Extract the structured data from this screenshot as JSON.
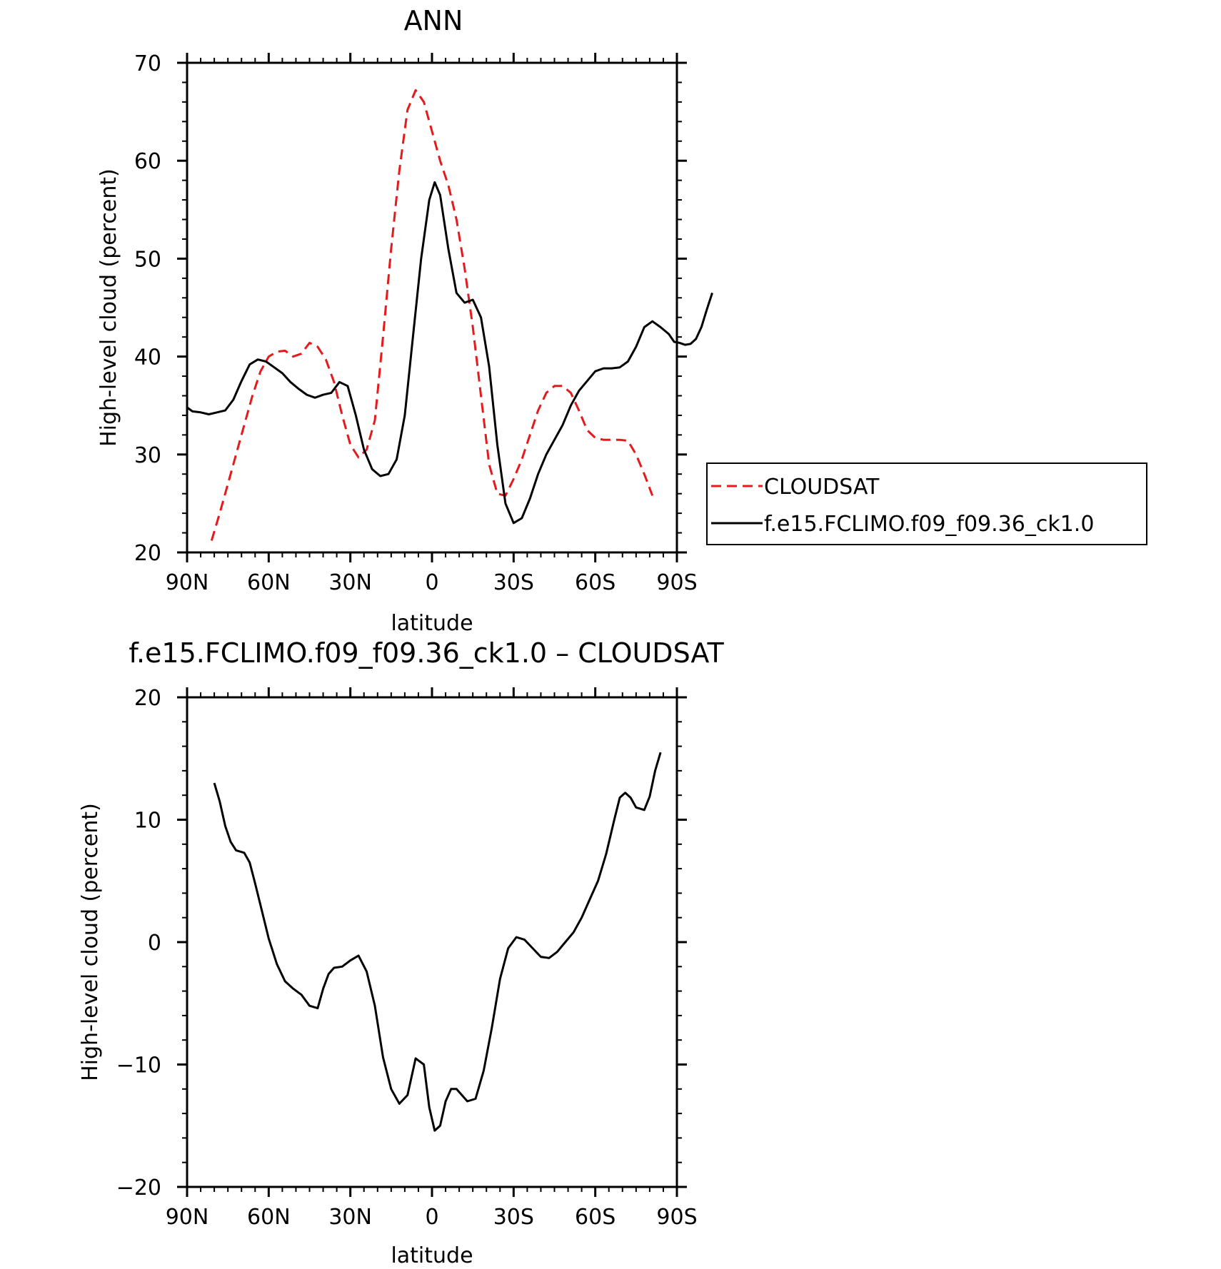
{
  "chart_data": [
    {
      "type": "line",
      "title": "ANN",
      "xlabel": "latitude",
      "ylabel": "High-level cloud (percent)",
      "xlim": [
        -90,
        90
      ],
      "ylim": [
        20,
        70
      ],
      "x_ticks": [
        -90,
        -60,
        -30,
        0,
        30,
        60,
        90
      ],
      "x_tick_labels": [
        "90N",
        "60N",
        "30N",
        "0",
        "30S",
        "60S",
        "90S"
      ],
      "y_ticks": [
        20,
        30,
        40,
        50,
        60,
        70
      ],
      "y_tick_labels": [
        "20",
        "30",
        "40",
        "50",
        "60",
        "70"
      ],
      "legend_position": "right",
      "series": [
        {
          "name": "CLOUDSAT",
          "color": "#e41a1c",
          "style": "dashed",
          "points": [
            [
              -81,
              21.2
            ],
            [
              -78,
              24
            ],
            [
              -75,
              27
            ],
            [
              -72,
              30
            ],
            [
              -69,
              33
            ],
            [
              -66,
              36
            ],
            [
              -63,
              38.5
            ],
            [
              -60,
              40
            ],
            [
              -57,
              40.5
            ],
            [
              -54,
              40.6
            ],
            [
              -51,
              40
            ],
            [
              -48,
              40.3
            ],
            [
              -45,
              41.4
            ],
            [
              -42,
              41
            ],
            [
              -39,
              39.7
            ],
            [
              -36,
              37.4
            ],
            [
              -33,
              34
            ],
            [
              -30,
              31
            ],
            [
              -27,
              29.7
            ],
            [
              -24,
              30.5
            ],
            [
              -21,
              33.5
            ],
            [
              -18,
              42
            ],
            [
              -15,
              51
            ],
            [
              -12,
              59
            ],
            [
              -9,
              65.2
            ],
            [
              -6,
              67.2
            ],
            [
              -3,
              66
            ],
            [
              0,
              63
            ],
            [
              3,
              60
            ],
            [
              6,
              57.5
            ],
            [
              9,
              54
            ],
            [
              12,
              49
            ],
            [
              15,
              43
            ],
            [
              18,
              36
            ],
            [
              21,
              29
            ],
            [
              24,
              26
            ],
            [
              27,
              25.8
            ],
            [
              30,
              27.5
            ],
            [
              33,
              29.5
            ],
            [
              36,
              32
            ],
            [
              39,
              34.5
            ],
            [
              42,
              36.3
            ],
            [
              45,
              37
            ],
            [
              48,
              37
            ],
            [
              51,
              36.3
            ],
            [
              54,
              34.5
            ],
            [
              57,
              32.5
            ],
            [
              60,
              31.7
            ],
            [
              63,
              31.5
            ],
            [
              66,
              31.5
            ],
            [
              69,
              31.5
            ],
            [
              72,
              31.4
            ],
            [
              75,
              30
            ],
            [
              78,
              28
            ],
            [
              81,
              25.8
            ]
          ]
        },
        {
          "name": "f.e15.FCLIMO.f09_f09.36_ck1.0",
          "color": "#000000",
          "style": "solid",
          "points": [
            [
              -90,
              34.8
            ],
            [
              -88,
              34.4
            ],
            [
              -85,
              34.3
            ],
            [
              -82,
              34.1
            ],
            [
              -79,
              34.3
            ],
            [
              -76,
              34.5
            ],
            [
              -73,
              35.6
            ],
            [
              -70,
              37.5
            ],
            [
              -67,
              39.2
            ],
            [
              -64,
              39.7
            ],
            [
              -61,
              39.5
            ],
            [
              -58,
              38.9
            ],
            [
              -55,
              38.3
            ],
            [
              -52,
              37.4
            ],
            [
              -49,
              36.7
            ],
            [
              -46,
              36.1
            ],
            [
              -43,
              35.8
            ],
            [
              -40,
              36.1
            ],
            [
              -37,
              36.3
            ],
            [
              -34,
              37.4
            ],
            [
              -31,
              37
            ],
            [
              -28,
              34
            ],
            [
              -25,
              30.5
            ],
            [
              -22,
              28.5
            ],
            [
              -19,
              27.8
            ],
            [
              -16,
              28
            ],
            [
              -13,
              29.5
            ],
            [
              -10,
              34
            ],
            [
              -7,
              42
            ],
            [
              -4,
              50
            ],
            [
              -1,
              56
            ],
            [
              1,
              57.8
            ],
            [
              3,
              56.5
            ],
            [
              6,
              51
            ],
            [
              9,
              46.5
            ],
            [
              12,
              45.5
            ],
            [
              15,
              45.8
            ],
            [
              18,
              44
            ],
            [
              21,
              39
            ],
            [
              24,
              31
            ],
            [
              27,
              25
            ],
            [
              30,
              23
            ],
            [
              33,
              23.5
            ],
            [
              36,
              25.5
            ],
            [
              39,
              28
            ],
            [
              42,
              30
            ],
            [
              45,
              31.5
            ],
            [
              48,
              33
            ],
            [
              51,
              35
            ],
            [
              54,
              36.5
            ],
            [
              57,
              37.5
            ],
            [
              60,
              38.5
            ],
            [
              63,
              38.8
            ],
            [
              66,
              38.8
            ],
            [
              69,
              38.9
            ],
            [
              72,
              39.5
            ],
            [
              75,
              41
            ],
            [
              78,
              43
            ],
            [
              81,
              43.6
            ],
            [
              84,
              43
            ],
            [
              87,
              42.3
            ],
            [
              89,
              41.5
            ],
            [
              91,
              41.4
            ],
            [
              93,
              41.2
            ],
            [
              95,
              41.3
            ],
            [
              97,
              41.8
            ],
            [
              99,
              43
            ],
            [
              101,
              44.8
            ],
            [
              103,
              46.5
            ]
          ]
        }
      ]
    },
    {
      "type": "line",
      "title": "f.e15.FCLIMO.f09_f09.36_ck1.0 – CLOUDSAT",
      "xlabel": "latitude",
      "ylabel": "High-level cloud (percent)",
      "xlim": [
        -90,
        90
      ],
      "ylim": [
        -20,
        20
      ],
      "x_ticks": [
        -90,
        -60,
        -30,
        0,
        30,
        60,
        90
      ],
      "x_tick_labels": [
        "90N",
        "60N",
        "30N",
        "0",
        "30S",
        "60S",
        "90S"
      ],
      "y_ticks": [
        -20,
        -10,
        0,
        10,
        20
      ],
      "y_tick_labels": [
        "−20",
        "−10",
        "0",
        "10",
        "20"
      ],
      "series": [
        {
          "color": "#000000",
          "style": "solid",
          "points": [
            [
              -80,
              13
            ],
            [
              -78,
              11.5
            ],
            [
              -76,
              9.5
            ],
            [
              -74,
              8.2
            ],
            [
              -72,
              7.5
            ],
            [
              -69,
              7.3
            ],
            [
              -67,
              6.5
            ],
            [
              -65,
              4.8
            ],
            [
              -63,
              3
            ],
            [
              -60,
              0.3
            ],
            [
              -57,
              -1.8
            ],
            [
              -54,
              -3.2
            ],
            [
              -51,
              -3.8
            ],
            [
              -48,
              -4.3
            ],
            [
              -45,
              -5.2
            ],
            [
              -42,
              -5.4
            ],
            [
              -40,
              -3.8
            ],
            [
              -38,
              -2.6
            ],
            [
              -36,
              -2.1
            ],
            [
              -33,
              -2
            ],
            [
              -30,
              -1.5
            ],
            [
              -27,
              -1.1
            ],
            [
              -24,
              -2.4
            ],
            [
              -21,
              -5.2
            ],
            [
              -18,
              -9.4
            ],
            [
              -15,
              -12
            ],
            [
              -12,
              -13.2
            ],
            [
              -9,
              -12.5
            ],
            [
              -6,
              -9.5
            ],
            [
              -3,
              -10
            ],
            [
              -1,
              -13.5
            ],
            [
              1,
              -15.4
            ],
            [
              3,
              -15
            ],
            [
              5,
              -13
            ],
            [
              7,
              -12
            ],
            [
              9,
              -12
            ],
            [
              11,
              -12.5
            ],
            [
              13,
              -13
            ],
            [
              16,
              -12.8
            ],
            [
              19,
              -10.5
            ],
            [
              22,
              -7
            ],
            [
              25,
              -3
            ],
            [
              28,
              -0.5
            ],
            [
              31,
              0.4
            ],
            [
              34,
              0.2
            ],
            [
              37,
              -0.5
            ],
            [
              40,
              -1.2
            ],
            [
              43,
              -1.3
            ],
            [
              46,
              -0.8
            ],
            [
              49,
              0
            ],
            [
              52,
              0.8
            ],
            [
              55,
              2
            ],
            [
              58,
              3.5
            ],
            [
              61,
              5
            ],
            [
              64,
              7.2
            ],
            [
              67,
              10
            ],
            [
              69,
              11.8
            ],
            [
              71,
              12.2
            ],
            [
              73,
              11.8
            ],
            [
              75,
              11
            ],
            [
              78,
              10.8
            ],
            [
              80,
              11.9
            ],
            [
              82,
              14
            ],
            [
              84,
              15.5
            ]
          ]
        }
      ]
    }
  ]
}
